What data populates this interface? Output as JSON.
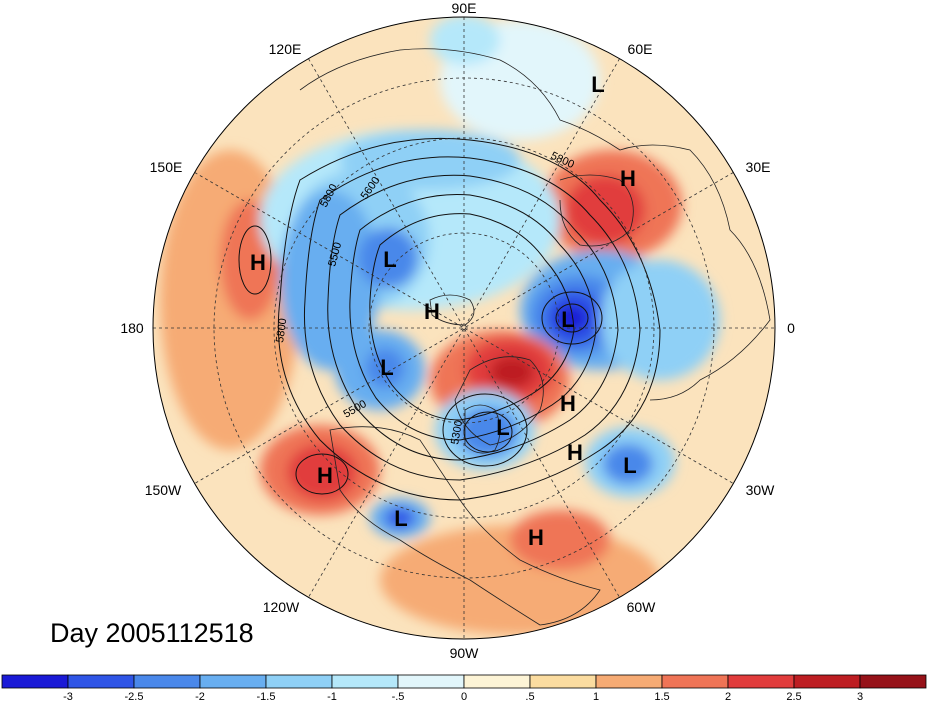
{
  "title": "",
  "day_label": "Day 2005112518",
  "longitude_labels": {
    "lon_90e": "90E",
    "lon_120e": "120E",
    "lon_60e": "60E",
    "lon_150e": "150E",
    "lon_30e": "30E",
    "lon_180": "180",
    "lon_0": "0",
    "lon_150w": "150W",
    "lon_30w": "30W",
    "lon_120w": "120W",
    "lon_60w": "60W",
    "lon_90w": "90W"
  },
  "contour_labels": {
    "c5800_a": "5800",
    "c5600": "5600",
    "c5500_a": "5500",
    "c5800_b": "5800",
    "c5800_c": "5800",
    "c5500_b": "5500",
    "c5300": "5300"
  },
  "pressure_systems": [
    {
      "type": "L",
      "region": "north-siberia"
    },
    {
      "type": "H",
      "region": "west-europe"
    },
    {
      "type": "H",
      "region": "north-pacific"
    },
    {
      "type": "L",
      "region": "east-siberia"
    },
    {
      "type": "H",
      "region": "pole"
    },
    {
      "type": "L",
      "region": "north-atlantic"
    },
    {
      "type": "L",
      "region": "alaska"
    },
    {
      "type": "H",
      "region": "greenland"
    },
    {
      "type": "L",
      "region": "hudson-bay"
    },
    {
      "type": "H",
      "region": "mid-atlantic"
    },
    {
      "type": "L",
      "region": "east-atlantic"
    },
    {
      "type": "H",
      "region": "east-pacific"
    },
    {
      "type": "L",
      "region": "california"
    },
    {
      "type": "H",
      "region": "caribbean"
    }
  ],
  "colorbar": {
    "tick_labels": [
      "-3",
      "-2.5",
      "-2",
      "-1.5",
      "-1",
      "-.5",
      "0",
      ".5",
      "1",
      "1.5",
      "2",
      "2.5",
      "3"
    ],
    "colors": [
      "#1a1ad6",
      "#2f55e6",
      "#4a88ea",
      "#68aef0",
      "#8fd0f6",
      "#b5e8fa",
      "#e2f6fb",
      "#fdf4d6",
      "#fbdca0",
      "#f6ab74",
      "#ef7456",
      "#e13c3c",
      "#bd1d22",
      "#961219"
    ]
  },
  "colors": {
    "background": "#ffffff",
    "anomaly_neutral": "#e2f6fb"
  }
}
